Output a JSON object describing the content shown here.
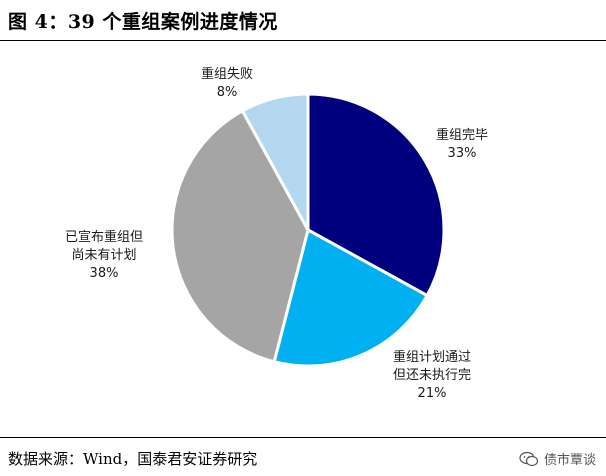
{
  "figure": {
    "title": "图 4：39 个重组案例进度情况",
    "source": "数据来源：Wind，国泰君安证券研究",
    "brand": "债市覃谈",
    "brand_icon": "wechat-icon"
  },
  "chart_data": {
    "type": "pie",
    "slices": [
      {
        "label_lines": [
          "重组完毕"
        ],
        "value": 33,
        "value_label": "33%",
        "color": "#00007f"
      },
      {
        "label_lines": [
          "重组计划通过",
          "但还未执行完"
        ],
        "value": 21,
        "value_label": "21%",
        "color": "#00b0f0"
      },
      {
        "label_lines": [
          "已宣布重组但",
          "尚未有计划"
        ],
        "value": 38,
        "value_label": "38%",
        "color": "#a5a5a5"
      },
      {
        "label_lines": [
          "重组失败"
        ],
        "value": 8,
        "value_label": "8%",
        "color": "#b4d7f0"
      }
    ],
    "start_angle_deg": 0,
    "direction": "clockwise",
    "legend": "none",
    "data_labels": "outside"
  }
}
